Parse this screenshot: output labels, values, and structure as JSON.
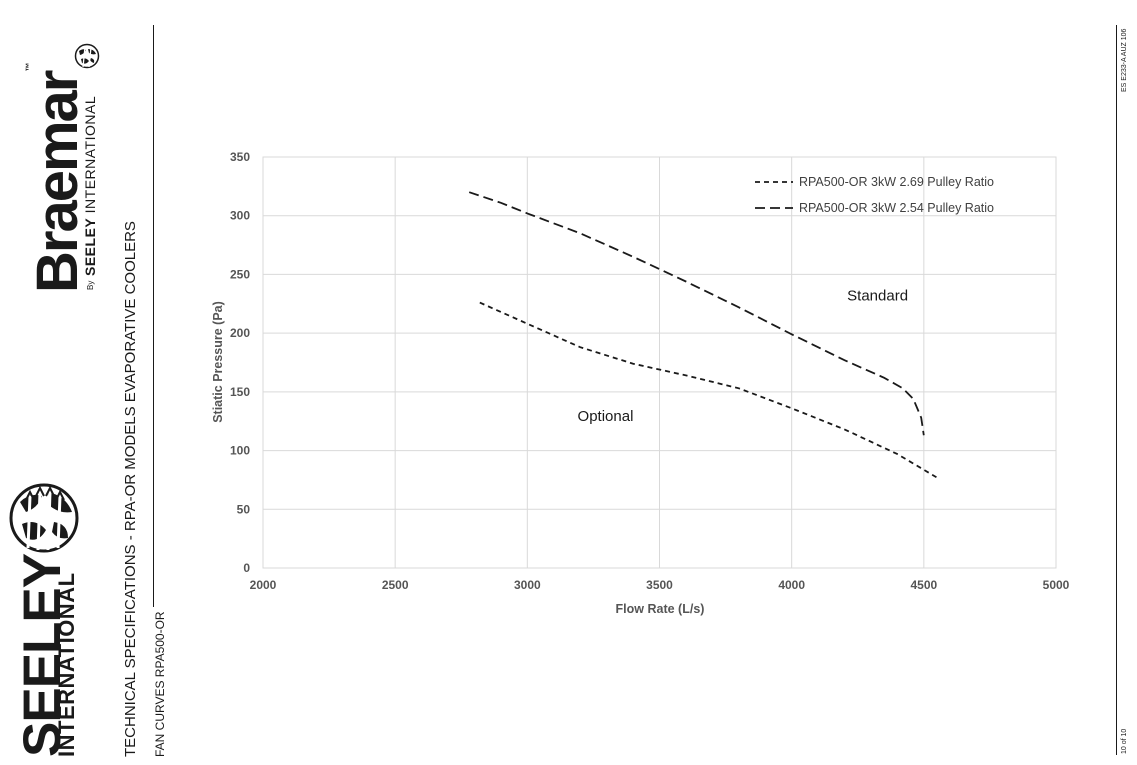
{
  "branding": {
    "braemar_word": "Braemar",
    "braemar_tm": "™",
    "braemar_by": "By",
    "braemar_company_bold": "SEELEY",
    "braemar_company_rest": " INTERNATIONAL",
    "seeley_word": "SEELEY",
    "seeley_intl": "INTERNATIONAL"
  },
  "document": {
    "title": "TECHNICAL SPECIFICATIONS - RPA-OR MODELS EVAPORATIVE COOLERS",
    "subtitle": "FAN CURVES RPA500-OR",
    "code": "ES E233-A AUZ 106",
    "page": "10 of 10"
  },
  "chart_data": {
    "type": "line",
    "title": "",
    "xlabel": "Flow Rate (L/s)",
    "ylabel": "Stiatic Pressure (Pa)",
    "xlim": [
      2000,
      5000
    ],
    "ylim": [
      0,
      350
    ],
    "xticks": [
      2000,
      2500,
      3000,
      3500,
      4000,
      4500,
      5000
    ],
    "yticks": [
      0,
      50,
      100,
      150,
      200,
      250,
      300,
      350
    ],
    "grid": true,
    "legend_position": "top-right",
    "series": [
      {
        "name": "RPA500-OR 3kW 2.69 Pulley Ratio",
        "dash": "short",
        "points": [
          [
            2820,
            226
          ],
          [
            3000,
            208
          ],
          [
            3200,
            188
          ],
          [
            3400,
            174
          ],
          [
            3600,
            164
          ],
          [
            3800,
            153
          ],
          [
            4000,
            136
          ],
          [
            4200,
            118
          ],
          [
            4400,
            97
          ],
          [
            4550,
            77
          ]
        ]
      },
      {
        "name": "RPA500-OR 3kW 2.54 Pulley Ratio",
        "dash": "long",
        "points": [
          [
            2780,
            320
          ],
          [
            2900,
            311
          ],
          [
            3000,
            302
          ],
          [
            3200,
            285
          ],
          [
            3400,
            265
          ],
          [
            3600,
            244
          ],
          [
            3800,
            222
          ],
          [
            4000,
            199
          ],
          [
            4200,
            177
          ],
          [
            4350,
            162
          ],
          [
            4420,
            153
          ],
          [
            4460,
            144
          ],
          [
            4490,
            128
          ],
          [
            4500,
            113
          ]
        ]
      }
    ],
    "annotations": [
      {
        "text": "Standard",
        "x": 4210,
        "y": 228
      },
      {
        "text": "Optional",
        "x": 3190,
        "y": 125
      }
    ]
  }
}
